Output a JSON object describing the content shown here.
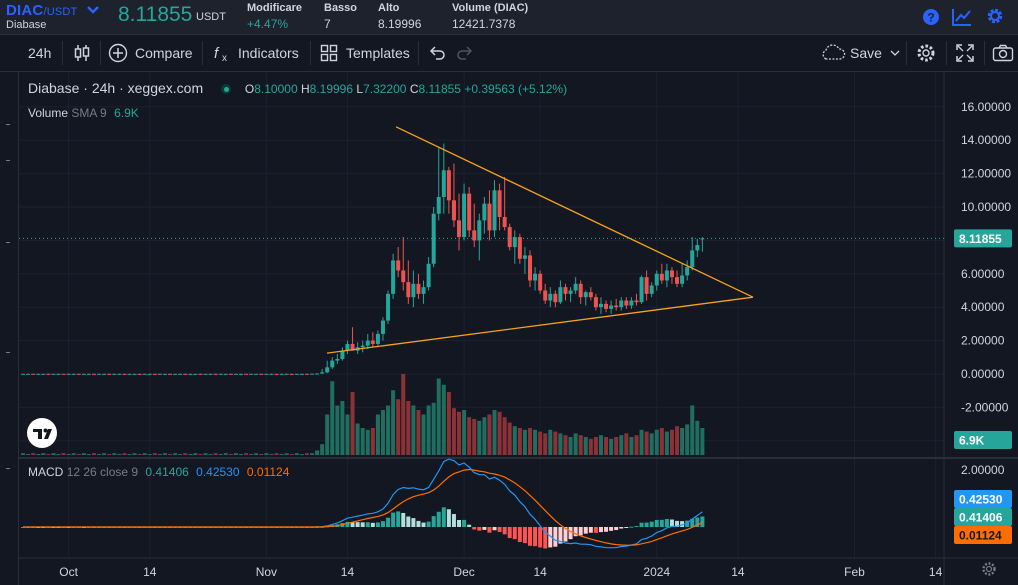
{
  "ticker": {
    "symbol": "DIAC",
    "quote": "/USDT",
    "exchange_name": "Diabase",
    "price": "8.11855",
    "price_unit": "USDT",
    "change_label": "Modificare",
    "change_value": "+4.47%",
    "low_label": "Basso",
    "low_value": "7",
    "high_label": "Alto",
    "high_value": "8.19996",
    "volume_label": "Volume (DIAC)",
    "volume_value": "12421.7378"
  },
  "toolbar": {
    "interval": "24h",
    "compare": "Compare",
    "indicators": "Indicators",
    "templates": "Templates",
    "save": "Save"
  },
  "legend": {
    "name": "Diabase",
    "interval": "24h",
    "source": "xeggex.com",
    "o_label": "O",
    "o": "8.10000",
    "h_label": "H",
    "h": "8.19996",
    "l_label": "L",
    "l": "7.32200",
    "c_label": "C",
    "c": "8.11855",
    "change": "+0.39563 (+5.12%)",
    "volume_label": "Volume",
    "volume_sma": "SMA 9",
    "volume_value": "6.9K",
    "macd_label": "MACD",
    "macd_params": "12 26 close 9",
    "macd_v1": "0.41406",
    "macd_v2": "0.42530",
    "macd_v3": "0.01124"
  },
  "colors": {
    "up": "#26a69a",
    "down": "#ef5350",
    "trendline": "#f7a21b",
    "macd_line": "#2196f3",
    "signal_line": "#ff6d00",
    "accent": "#2962ff"
  },
  "chart_data": [
    {
      "type": "candlestick",
      "title": "Diabase 24h xeggex.com",
      "y_ticks": [
        "16.00000",
        "14.00000",
        "12.00000",
        "10.00000",
        "8.00000",
        "6.00000",
        "4.00000",
        "2.00000",
        "0.00000",
        "-2.00000",
        "-4.00000"
      ],
      "ylim": [
        -4,
        16
      ],
      "x_ticks": [
        "Oct",
        "14",
        "Nov",
        "14",
        "Dec",
        "14",
        "2024",
        "14",
        "Feb",
        "14"
      ],
      "last_price_label": "8.11855",
      "last_price": 8.11855,
      "candles": [
        [
          0.01,
          0.01,
          0.0,
          0.01
        ],
        [
          0.01,
          0.02,
          0.0,
          0.01
        ],
        [
          0.01,
          0.01,
          0.0,
          0.0
        ],
        [
          0.0,
          0.02,
          0.0,
          0.01
        ],
        [
          0.01,
          0.01,
          0.0,
          0.01
        ],
        [
          0.01,
          0.02,
          0.0,
          0.0
        ],
        [
          0.0,
          0.01,
          0.0,
          0.01
        ],
        [
          0.01,
          0.02,
          0.0,
          0.01
        ],
        [
          0.01,
          0.01,
          0.0,
          0.0
        ],
        [
          0.0,
          0.02,
          0.0,
          0.01
        ],
        [
          0.01,
          0.01,
          0.0,
          0.01
        ],
        [
          0.01,
          0.02,
          0.0,
          0.0
        ],
        [
          0.0,
          0.01,
          0.0,
          0.01
        ],
        [
          0.01,
          0.02,
          0.0,
          0.01
        ],
        [
          0.01,
          0.01,
          0.0,
          0.0
        ],
        [
          0.0,
          0.02,
          0.0,
          0.01
        ],
        [
          0.01,
          0.01,
          0.0,
          0.01
        ],
        [
          0.01,
          0.02,
          0.0,
          0.0
        ],
        [
          0.0,
          0.01,
          0.0,
          0.01
        ],
        [
          0.01,
          0.02,
          0.0,
          0.01
        ],
        [
          0.01,
          0.01,
          0.0,
          0.0
        ],
        [
          0.0,
          0.02,
          0.0,
          0.01
        ],
        [
          0.01,
          0.01,
          0.0,
          0.01
        ],
        [
          0.01,
          0.02,
          0.0,
          0.0
        ],
        [
          0.0,
          0.01,
          0.0,
          0.01
        ],
        [
          0.01,
          0.02,
          0.0,
          0.01
        ],
        [
          0.01,
          0.01,
          0.0,
          0.0
        ],
        [
          0.0,
          0.02,
          0.0,
          0.01
        ],
        [
          0.01,
          0.01,
          0.0,
          0.01
        ],
        [
          0.01,
          0.02,
          0.0,
          0.0
        ],
        [
          0.0,
          0.01,
          0.0,
          0.01
        ],
        [
          0.01,
          0.02,
          0.0,
          0.01
        ],
        [
          0.01,
          0.01,
          0.0,
          0.0
        ],
        [
          0.0,
          0.02,
          0.0,
          0.01
        ],
        [
          0.01,
          0.01,
          0.0,
          0.01
        ],
        [
          0.01,
          0.02,
          0.0,
          0.0
        ],
        [
          0.0,
          0.01,
          0.0,
          0.01
        ],
        [
          0.01,
          0.02,
          0.0,
          0.01
        ],
        [
          0.01,
          0.01,
          0.0,
          0.0
        ],
        [
          0.0,
          0.02,
          0.0,
          0.01
        ],
        [
          0.01,
          0.01,
          0.0,
          0.01
        ],
        [
          0.01,
          0.02,
          0.0,
          0.0
        ],
        [
          0.0,
          0.01,
          0.0,
          0.01
        ],
        [
          0.01,
          0.02,
          0.0,
          0.01
        ],
        [
          0.01,
          0.01,
          0.0,
          0.0
        ],
        [
          0.0,
          0.02,
          0.0,
          0.01
        ],
        [
          0.01,
          0.01,
          0.0,
          0.01
        ],
        [
          0.01,
          0.02,
          0.0,
          0.0
        ],
        [
          0.0,
          0.01,
          0.0,
          0.01
        ],
        [
          0.01,
          0.02,
          0.0,
          0.01
        ],
        [
          0.01,
          0.01,
          0.0,
          0.0
        ],
        [
          0.0,
          0.02,
          0.0,
          0.01
        ],
        [
          0.01,
          0.01,
          0.0,
          0.01
        ],
        [
          0.01,
          0.02,
          0.0,
          0.0
        ],
        [
          0.0,
          0.01,
          0.0,
          0.01
        ],
        [
          0.01,
          0.02,
          0.0,
          0.01
        ],
        [
          0.01,
          0.02,
          0.0,
          0.0
        ],
        [
          0.0,
          0.02,
          0.0,
          0.02
        ],
        [
          0.02,
          0.05,
          0.0,
          0.03
        ],
        [
          0.03,
          0.3,
          0.0,
          0.1
        ],
        [
          0.1,
          0.8,
          0.05,
          0.4
        ],
        [
          0.4,
          1.0,
          0.3,
          0.8
        ],
        [
          0.8,
          1.2,
          0.6,
          0.9
        ],
        [
          0.9,
          1.6,
          0.8,
          1.4
        ],
        [
          1.4,
          2.0,
          1.2,
          1.8
        ],
        [
          1.8,
          2.8,
          1.5,
          1.4
        ],
        [
          1.4,
          1.9,
          1.2,
          1.6
        ],
        [
          1.6,
          2.0,
          1.3,
          1.7
        ],
        [
          1.7,
          2.4,
          1.5,
          2.0
        ],
        [
          2.0,
          2.5,
          1.6,
          1.8
        ],
        [
          1.8,
          2.6,
          1.7,
          2.4
        ],
        [
          2.4,
          3.4,
          2.0,
          3.2
        ],
        [
          3.2,
          5.0,
          3.0,
          4.8
        ],
        [
          4.8,
          7.2,
          4.5,
          6.8
        ],
        [
          6.8,
          7.6,
          5.8,
          6.2
        ],
        [
          6.2,
          8.2,
          5.0,
          5.5
        ],
        [
          5.5,
          6.8,
          4.2,
          4.6
        ],
        [
          4.6,
          6.2,
          4.0,
          5.4
        ],
        [
          5.4,
          6.0,
          4.5,
          4.8
        ],
        [
          4.8,
          5.6,
          4.2,
          5.2
        ],
        [
          5.2,
          7.0,
          5.0,
          6.6
        ],
        [
          6.6,
          10.0,
          6.4,
          9.6
        ],
        [
          9.6,
          13.6,
          9.2,
          10.6
        ],
        [
          10.6,
          13.8,
          9.6,
          12.2
        ],
        [
          12.2,
          12.4,
          9.6,
          10.4
        ],
        [
          10.4,
          12.6,
          8.8,
          9.2
        ],
        [
          9.2,
          10.8,
          7.4,
          8.2
        ],
        [
          8.2,
          11.4,
          8.0,
          10.8
        ],
        [
          10.8,
          11.2,
          8.2,
          8.6
        ],
        [
          8.6,
          10.2,
          7.6,
          8.0
        ],
        [
          8.0,
          9.6,
          6.8,
          9.2
        ],
        [
          9.2,
          10.6,
          8.4,
          10.2
        ],
        [
          10.2,
          11.0,
          8.0,
          8.6
        ],
        [
          8.6,
          11.6,
          8.2,
          11.0
        ],
        [
          11.0,
          11.4,
          8.6,
          9.4
        ],
        [
          9.4,
          11.8,
          8.6,
          8.8
        ],
        [
          8.8,
          9.0,
          7.4,
          7.6
        ],
        [
          7.6,
          8.6,
          6.6,
          8.2
        ],
        [
          8.2,
          8.4,
          6.6,
          6.9
        ],
        [
          6.9,
          7.6,
          6.0,
          7.1
        ],
        [
          7.1,
          7.4,
          5.2,
          5.6
        ],
        [
          5.6,
          6.4,
          5.0,
          6.0
        ],
        [
          6.0,
          6.2,
          4.8,
          5.0
        ],
        [
          5.0,
          5.4,
          4.2,
          4.4
        ],
        [
          4.4,
          5.2,
          4.0,
          4.8
        ],
        [
          4.8,
          5.0,
          4.0,
          4.3
        ],
        [
          4.3,
          5.6,
          4.2,
          5.2
        ],
        [
          5.2,
          5.4,
          4.4,
          4.8
        ],
        [
          4.8,
          5.2,
          4.3,
          5.0
        ],
        [
          5.0,
          5.8,
          4.8,
          5.4
        ],
        [
          5.4,
          5.6,
          4.2,
          4.6
        ],
        [
          4.6,
          5.0,
          4.1,
          4.9
        ],
        [
          4.9,
          5.2,
          4.4,
          4.6
        ],
        [
          4.6,
          4.8,
          3.8,
          4.0
        ],
        [
          4.0,
          4.6,
          3.6,
          4.2
        ],
        [
          4.2,
          4.4,
          3.7,
          3.9
        ],
        [
          3.9,
          4.4,
          3.6,
          4.1
        ],
        [
          4.1,
          4.5,
          3.8,
          4.0
        ],
        [
          4.0,
          4.6,
          3.8,
          4.4
        ],
        [
          4.4,
          4.6,
          3.9,
          4.1
        ],
        [
          4.1,
          4.6,
          3.9,
          4.4
        ],
        [
          4.4,
          4.8,
          4.1,
          4.3
        ],
        [
          4.3,
          5.9,
          4.2,
          5.8
        ],
        [
          5.8,
          6.2,
          4.4,
          4.8
        ],
        [
          4.8,
          5.5,
          4.6,
          5.3
        ],
        [
          5.3,
          6.2,
          5.0,
          6.0
        ],
        [
          6.0,
          6.6,
          5.4,
          5.6
        ],
        [
          5.6,
          6.6,
          5.2,
          6.2
        ],
        [
          6.2,
          6.4,
          5.4,
          5.8
        ],
        [
          5.8,
          6.2,
          5.2,
          5.4
        ],
        [
          5.4,
          6.6,
          5.2,
          5.9
        ],
        [
          5.9,
          6.8,
          5.6,
          6.4
        ],
        [
          6.4,
          8.2,
          6.2,
          7.4
        ],
        [
          7.4,
          8.1,
          7.0,
          7.72
        ],
        [
          8.1,
          8.2,
          7.32,
          8.11855
        ]
      ]
    },
    {
      "type": "bar",
      "title": "Volume SMA 9",
      "current_label": "6.9K",
      "volume_ratio": [
        0.02,
        0.01,
        0.02,
        0.01,
        0.02,
        0.01,
        0.02,
        0.01,
        0.02,
        0.01,
        0.02,
        0.01,
        0.02,
        0.01,
        0.02,
        0.01,
        0.02,
        0.01,
        0.02,
        0.01,
        0.02,
        0.01,
        0.02,
        0.01,
        0.02,
        0.01,
        0.02,
        0.01,
        0.02,
        0.01,
        0.02,
        0.01,
        0.02,
        0.01,
        0.02,
        0.01,
        0.02,
        0.01,
        0.02,
        0.01,
        0.02,
        0.01,
        0.02,
        0.01,
        0.02,
        0.01,
        0.02,
        0.01,
        0.02,
        0.01,
        0.02,
        0.01,
        0.02,
        0.01,
        0.02,
        0.01,
        0.02,
        0.02,
        0.05,
        0.12,
        0.45,
        0.82,
        0.55,
        0.6,
        0.45,
        0.7,
        0.35,
        0.3,
        0.28,
        0.3,
        0.45,
        0.5,
        0.55,
        0.72,
        0.62,
        0.9,
        0.6,
        0.55,
        0.5,
        0.45,
        0.55,
        0.58,
        0.85,
        0.78,
        0.7,
        0.52,
        0.48,
        0.5,
        0.42,
        0.4,
        0.38,
        0.42,
        0.45,
        0.5,
        0.48,
        0.42,
        0.36,
        0.32,
        0.3,
        0.28,
        0.3,
        0.28,
        0.26,
        0.24,
        0.28,
        0.26,
        0.24,
        0.22,
        0.2,
        0.24,
        0.22,
        0.2,
        0.18,
        0.2,
        0.22,
        0.2,
        0.18,
        0.2,
        0.22,
        0.24,
        0.2,
        0.22,
        0.28,
        0.26,
        0.24,
        0.28,
        0.3,
        0.26,
        0.28,
        0.32,
        0.3,
        0.34,
        0.55,
        0.38,
        0.3
      ]
    },
    {
      "type": "line",
      "title": "MACD 12 26 close 9",
      "y_ticks": [
        "2.00000",
        "0.00000"
      ],
      "macd_label": "0.41406",
      "signal_label": "0.42530",
      "hist_label": "0.01124"
    }
  ]
}
